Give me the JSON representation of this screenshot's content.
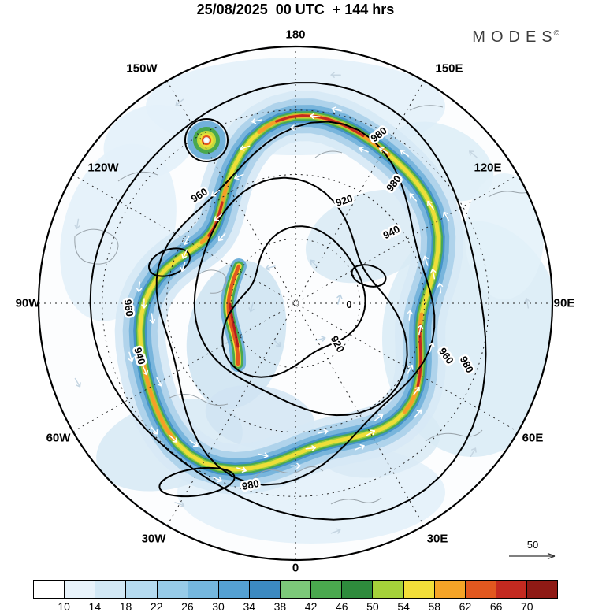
{
  "header": {
    "title": "25/08/2025  00 UTC  + 144 hrs",
    "logo": "MODES",
    "logo_sup": "©"
  },
  "map": {
    "projection": "northern-hemisphere polar stereographic",
    "lon_labels": [
      "180",
      "150W",
      "150E",
      "120W",
      "120E",
      "90W",
      "90E",
      "60W",
      "60E",
      "30W",
      "30E",
      "0"
    ],
    "contour_labels": [
      "980",
      "980",
      "980",
      "980",
      "960",
      "960",
      "960",
      "940",
      "940",
      "920",
      "920",
      "0"
    ],
    "reference_arrow_label": "50"
  },
  "chart_data": {
    "type": "heatmap",
    "title": "25/08/2025 00 UTC + 144 hrs",
    "projection": "northern-hemisphere polar stereographic",
    "description": "Filled shading of wind speed with black geopotential-height contours, white wind vectors, dashed lat/lon graticule and gray coastlines",
    "contour_levels": [
      920,
      940,
      960,
      980
    ],
    "graticule_longitudes": [
      "180",
      "150W",
      "150E",
      "120W",
      "120E",
      "90W",
      "90E",
      "60W",
      "60E",
      "30W",
      "30E",
      "0"
    ],
    "reference_vector": 50,
    "legend_position": "bottom",
    "colorbar": {
      "ticks": [
        10,
        14,
        18,
        22,
        26,
        30,
        34,
        38,
        42,
        46,
        50,
        54,
        58,
        62,
        66,
        70
      ],
      "colors": [
        "#ffffff",
        "#e8f3fb",
        "#d2e8f5",
        "#b5dbf0",
        "#97cbe8",
        "#75b7de",
        "#55a1d3",
        "#3c8ac1",
        "#7cc879",
        "#4aa84e",
        "#2e8b3c",
        "#a5d23a",
        "#f2de39",
        "#f5a427",
        "#e2581f",
        "#c42a20",
        "#8f1a15"
      ]
    }
  }
}
